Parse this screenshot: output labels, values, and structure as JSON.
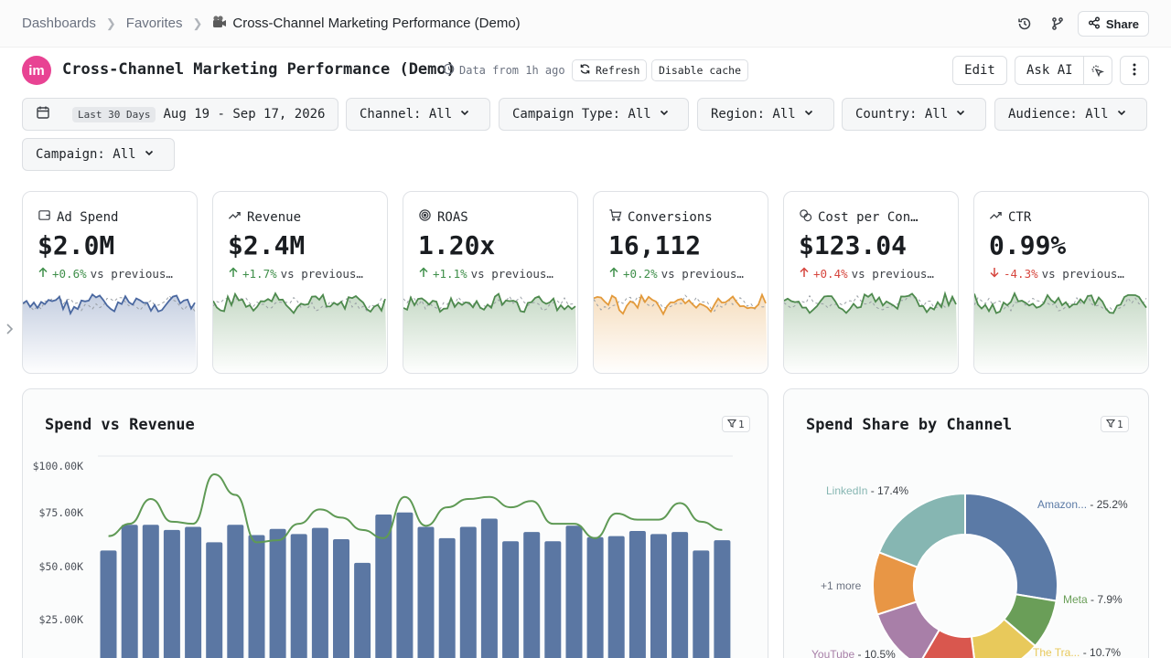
{
  "breadcrumb": {
    "items": [
      "Dashboards",
      "Favorites"
    ],
    "current": "Cross-Channel Marketing Performance (Demo)"
  },
  "topbar": {
    "share_label": "Share"
  },
  "header": {
    "logo_text": "im",
    "title": "Cross-Channel Marketing Performance (Demo)",
    "data_from": "Data from 1h ago",
    "refresh_label": "Refresh",
    "disable_cache_label": "Disable cache",
    "edit_label": "Edit",
    "ask_ai_label": "Ask AI"
  },
  "filters": {
    "date_badge": "Last 30 Days",
    "date_range": "Aug 19 - Sep 17, 2026",
    "channel": "Channel: All",
    "campaign_type": "Campaign Type: All",
    "region": "Region: All",
    "country": "Country: All",
    "audience": "Audience: All",
    "campaign": "Campaign: All"
  },
  "kpis": [
    {
      "label": "Ad Spend",
      "value": "$2.0M",
      "delta": "+0.6%",
      "direction": "up",
      "delta_color": "#3f8f4a",
      "vs": "vs previous…",
      "color": "#4a68a0",
      "icon": "wallet-icon"
    },
    {
      "label": "Revenue",
      "value": "$2.4M",
      "delta": "+1.7%",
      "direction": "up",
      "delta_color": "#3f8f4a",
      "vs": "vs previous…",
      "color": "#4e8a4e",
      "icon": "trending-up-icon"
    },
    {
      "label": "ROAS",
      "value": "1.20x",
      "delta": "+1.1%",
      "direction": "up",
      "delta_color": "#3f8f4a",
      "vs": "vs previous…",
      "color": "#4e8a4e",
      "icon": "target-icon"
    },
    {
      "label": "Conversions",
      "value": "16,112",
      "delta": "+0.2%",
      "direction": "up",
      "delta_color": "#3f8f4a",
      "vs": "vs previous…",
      "color": "#e39a3b",
      "icon": "cart-icon"
    },
    {
      "label": "Cost per Con…",
      "value": "$123.04",
      "delta": "+0.4%",
      "direction": "up",
      "delta_color": "#d6453d",
      "vs": "vs previous…",
      "color": "#4e8a4e",
      "icon": "coins-icon"
    },
    {
      "label": "CTR",
      "value": "0.99%",
      "delta": "-4.3%",
      "direction": "down",
      "delta_color": "#d6453d",
      "vs": "vs previous…",
      "color": "#4e8a4e",
      "icon": "trending-up-icon"
    }
  ],
  "spend_vs_revenue": {
    "title": "Spend vs Revenue",
    "filter_count": "1",
    "y_ticks": [
      "$100.00K",
      "$75.00K",
      "$50.00K",
      "$25.00K"
    ]
  },
  "spend_share": {
    "title": "Spend Share by Channel",
    "filter_count": "1",
    "more_label": "+1 more"
  },
  "chart_data": [
    {
      "type": "bar",
      "title": "Spend vs Revenue",
      "ylim": [
        0,
        100000
      ],
      "y_ticks": [
        "$100.00K",
        "$75.00K",
        "$50.00K",
        "$25.00K"
      ],
      "series": [
        {
          "values": [
            59000,
            71500,
            71500,
            69000,
            70500,
            63000,
            71500,
            66500,
            69500,
            67000,
            70000,
            64500,
            53000,
            76500,
            77500,
            70500,
            65000,
            70500,
            74500,
            63500,
            68000,
            63500,
            71000,
            65500,
            66000,
            68500,
            67000,
            68000,
            59000,
            64000
          ]
        },
        {
          "values": [
            66000,
            72000,
            84000,
            73000,
            72000,
            96000,
            86000,
            63000,
            64000,
            72000,
            79000,
            75000,
            69000,
            65000,
            85000,
            71000,
            80000,
            84000,
            85000,
            80000,
            83000,
            72000,
            72000,
            65000,
            77000,
            74000,
            74000,
            82000,
            73000,
            69000
          ]
        }
      ]
    },
    {
      "type": "pie",
      "title": "Spend Share by Channel",
      "categories": [
        "Amazon...",
        "Meta",
        "The Tra...",
        "",
        "YouTube",
        "",
        "LinkedIn"
      ],
      "labels": [
        "Amazon... - 25.2%",
        "Meta - 7.9%",
        "The Tra... - 10.7%",
        "",
        "YouTube - 10.5%",
        "",
        "LinkedIn - 17.4%"
      ],
      "values": [
        25.2,
        7.9,
        10.7,
        9.5,
        10.5,
        10.0,
        17.4
      ],
      "colors": [
        "#5b7aa6",
        "#6a9e58",
        "#e8c95b",
        "#d9574e",
        "#a87fa8",
        "#e89645",
        "#86b6b2"
      ]
    }
  ]
}
